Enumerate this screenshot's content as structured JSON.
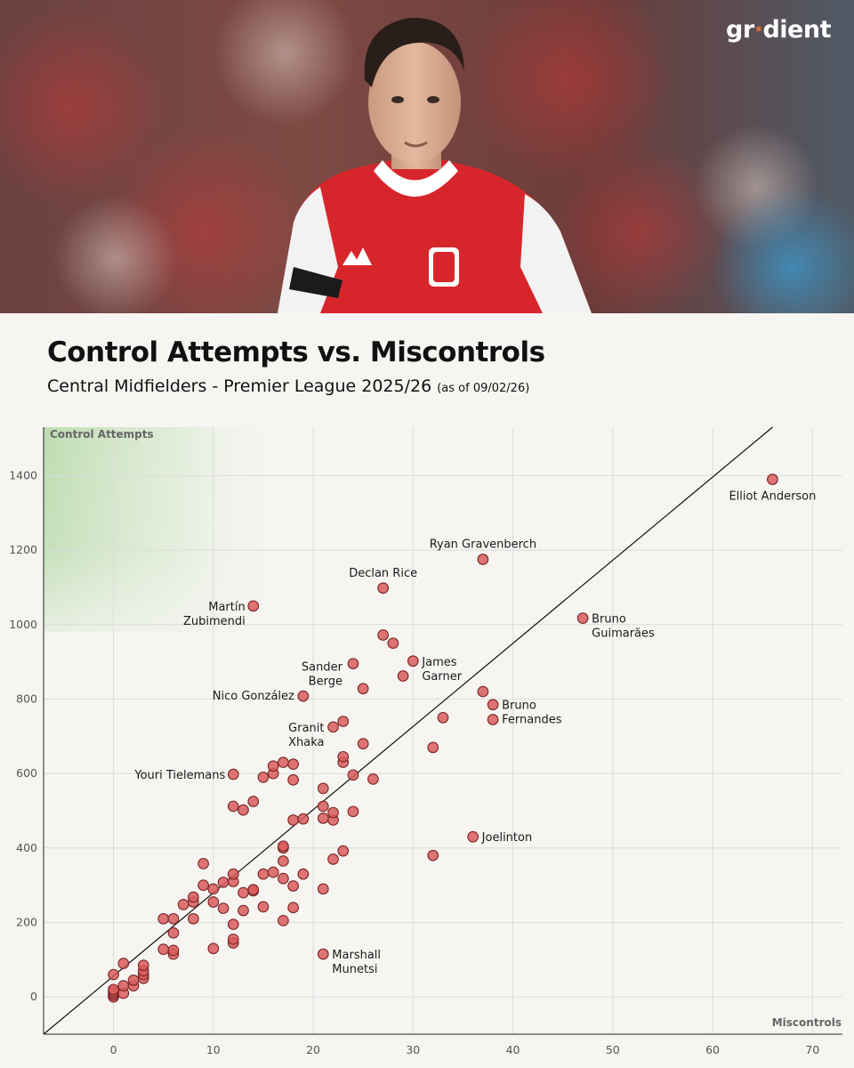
{
  "brand": {
    "name_pre": "gr",
    "name_dot": "·",
    "name_post": "dient"
  },
  "header": {
    "title": "Control Attempts vs. Miscontrols",
    "subtitle": "Central Midfielders - Premier League 2025/26",
    "asof": "(as of 09/02/26)"
  },
  "hero": {
    "description_icon": "player-photo",
    "colors": {
      "shirt": "#d7262b",
      "sleeve": "#ffffff",
      "background": "#7a4a45"
    }
  },
  "chart_data": {
    "type": "scatter",
    "xlabel": "Miscontrols",
    "ylabel": "Control Attempts",
    "xlim": [
      -7,
      73
    ],
    "ylim": [
      -100,
      1530
    ],
    "xticks": [
      0,
      10,
      20,
      30,
      40,
      50,
      60,
      70
    ],
    "yticks": [
      0,
      200,
      400,
      600,
      800,
      1000,
      1200,
      1400
    ],
    "trendline": {
      "x1": -7,
      "y1": -100,
      "x2": 66,
      "y2": 1530
    },
    "highlight_region": "top-left",
    "point_color": "#d85c5c",
    "labeled": [
      {
        "name": "Elliot Anderson",
        "x": 66,
        "y": 1390,
        "lines": [
          "Elliot Anderson"
        ]
      },
      {
        "name": "Ryan Gravenberch",
        "x": 37,
        "y": 1175,
        "lines": [
          "Ryan Gravenberch"
        ]
      },
      {
        "name": "Declan Rice",
        "x": 27,
        "y": 1098,
        "lines": [
          "Declan Rice"
        ]
      },
      {
        "name": "Martín Zubimendi",
        "x": 14,
        "y": 1050,
        "lines": [
          "Martín",
          "Zubimendi"
        ]
      },
      {
        "name": "Bruno Guimarães",
        "x": 47,
        "y": 1017,
        "lines": [
          "Bruno",
          "Guimarães"
        ]
      },
      {
        "name": "James Garner",
        "x": 30,
        "y": 902,
        "lines": [
          "James",
          "Garner"
        ]
      },
      {
        "name": "Sander Berge",
        "x": 24,
        "y": 895,
        "lines": [
          "Sander",
          "Berge"
        ]
      },
      {
        "name": "Nico González",
        "x": 19,
        "y": 808,
        "lines": [
          "Nico González"
        ]
      },
      {
        "name": "Bruno Fernandes",
        "x": 38,
        "y": 785,
        "lines": [
          "Bruno",
          "Fernandes"
        ]
      },
      {
        "name": "Granit Xhaka",
        "x": 22,
        "y": 725,
        "lines": [
          "Granit",
          "Xhaka"
        ]
      },
      {
        "name": "Youri Tielemans",
        "x": 12,
        "y": 598,
        "lines": [
          "Youri Tielemans"
        ]
      },
      {
        "name": "Joelinton",
        "x": 36,
        "y": 430,
        "lines": [
          "Joelinton"
        ]
      },
      {
        "name": "Marshall Munetsi",
        "x": 21,
        "y": 115,
        "lines": [
          "Marshall",
          "Munetsi"
        ]
      }
    ],
    "points": [
      [
        0,
        0
      ],
      [
        0,
        5
      ],
      [
        0,
        10
      ],
      [
        0,
        15
      ],
      [
        0,
        20
      ],
      [
        0,
        60
      ],
      [
        1,
        10
      ],
      [
        1,
        30
      ],
      [
        1,
        90
      ],
      [
        2,
        30
      ],
      [
        2,
        45
      ],
      [
        3,
        50
      ],
      [
        3,
        60
      ],
      [
        3,
        70
      ],
      [
        3,
        85
      ],
      [
        5,
        128
      ],
      [
        5,
        210
      ],
      [
        6,
        115
      ],
      [
        6,
        125
      ],
      [
        6,
        172
      ],
      [
        6,
        210
      ],
      [
        7,
        248
      ],
      [
        8,
        210
      ],
      [
        8,
        255
      ],
      [
        8,
        268
      ],
      [
        9,
        300
      ],
      [
        9,
        358
      ],
      [
        10,
        130
      ],
      [
        10,
        255
      ],
      [
        10,
        290
      ],
      [
        11,
        238
      ],
      [
        11,
        308
      ],
      [
        12,
        145
      ],
      [
        12,
        155
      ],
      [
        12,
        195
      ],
      [
        12,
        310
      ],
      [
        12,
        330
      ],
      [
        12,
        512
      ],
      [
        13,
        232
      ],
      [
        13,
        280
      ],
      [
        13,
        502
      ],
      [
        14,
        285
      ],
      [
        14,
        288
      ],
      [
        14,
        525
      ],
      [
        15,
        242
      ],
      [
        15,
        330
      ],
      [
        15,
        590
      ],
      [
        16,
        335
      ],
      [
        16,
        600
      ],
      [
        16,
        620
      ],
      [
        17,
        205
      ],
      [
        17,
        318
      ],
      [
        17,
        365
      ],
      [
        17,
        400
      ],
      [
        17,
        405
      ],
      [
        17,
        630
      ],
      [
        18,
        240
      ],
      [
        18,
        298
      ],
      [
        18,
        475
      ],
      [
        18,
        583
      ],
      [
        18,
        625
      ],
      [
        19,
        330
      ],
      [
        19,
        478
      ],
      [
        21,
        290
      ],
      [
        21,
        480
      ],
      [
        21,
        512
      ],
      [
        21,
        560
      ],
      [
        22,
        370
      ],
      [
        22,
        475
      ],
      [
        22,
        495
      ],
      [
        23,
        392
      ],
      [
        23,
        630
      ],
      [
        23,
        645
      ],
      [
        23,
        740
      ],
      [
        24,
        498
      ],
      [
        24,
        596
      ],
      [
        25,
        680
      ],
      [
        25,
        828
      ],
      [
        26,
        585
      ],
      [
        27,
        972
      ],
      [
        28,
        950
      ],
      [
        29,
        862
      ],
      [
        32,
        380
      ],
      [
        32,
        670
      ],
      [
        33,
        750
      ],
      [
        37,
        820
      ],
      [
        38,
        745
      ]
    ]
  }
}
